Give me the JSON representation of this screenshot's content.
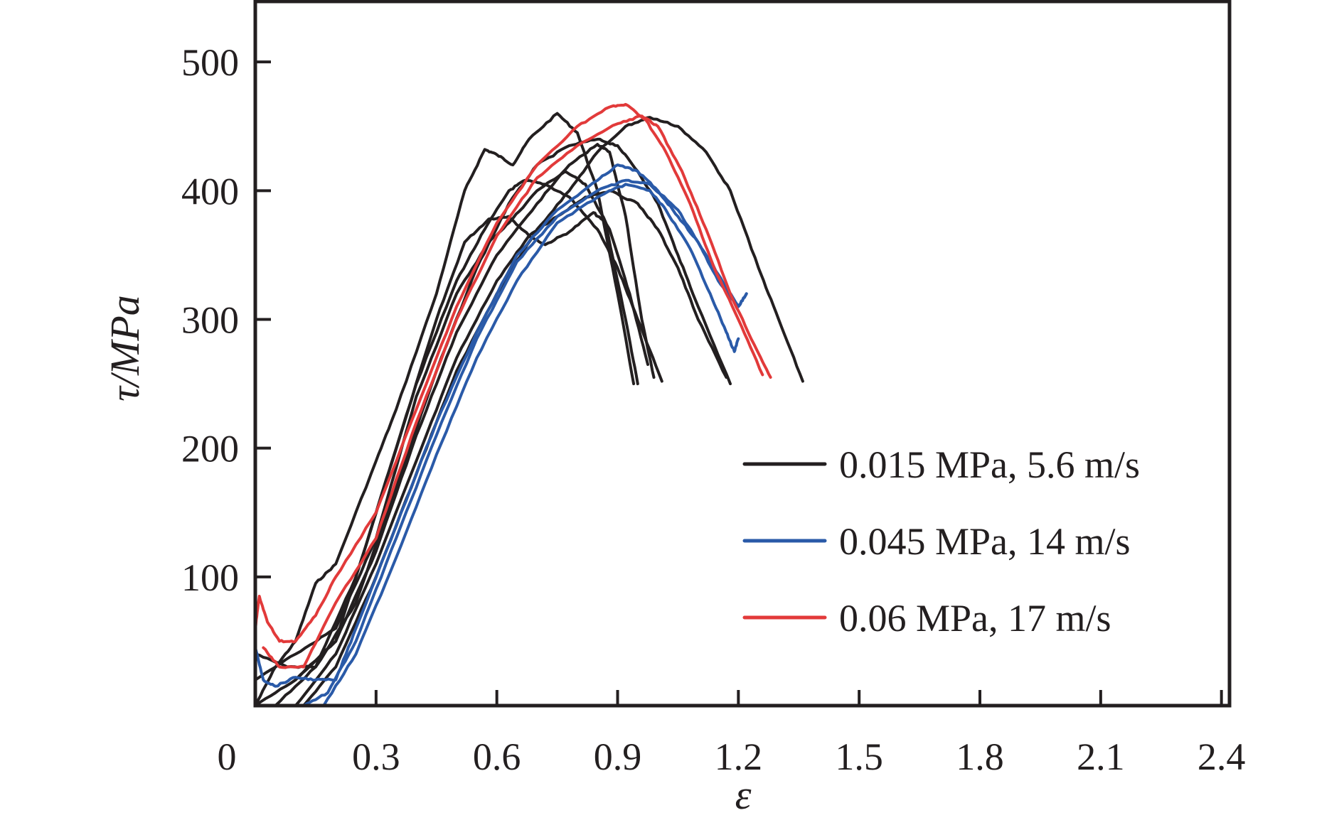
{
  "chart_data": {
    "type": "line",
    "title": "",
    "xlabel": "ε",
    "ylabel": "τ/MPa",
    "xlim": [
      0,
      2.42
    ],
    "ylim": [
      0,
      547
    ],
    "x_ticks": [
      0,
      0.3,
      0.6,
      0.9,
      1.2,
      1.5,
      1.8,
      2.1,
      2.4
    ],
    "x_tick_labels": [
      "0",
      "0.3",
      "0.6",
      "0.9",
      "1.2",
      "1.5",
      "1.8",
      "2.1",
      "2.4"
    ],
    "y_ticks": [
      100,
      200,
      300,
      400,
      500
    ],
    "y_tick_labels": [
      "100",
      "200",
      "300",
      "400",
      "500"
    ],
    "grid": false,
    "legend_position": "center-right",
    "legend": [
      {
        "label": "0.015 MPa, 5.6 m/s",
        "color": "#231f20"
      },
      {
        "label": "0.045 MPa, 14 m/s",
        "color": "#2a5aa8"
      },
      {
        "label": "0.06 MPa, 17 m/s",
        "color": "#e23a3a"
      }
    ],
    "series": [
      {
        "name": "0.015 MPa, 5.6 m/s #1",
        "group": 0,
        "points": [
          [
            0,
            0
          ],
          [
            0.05,
            30
          ],
          [
            0.1,
            50
          ],
          [
            0.15,
            95
          ],
          [
            0.2,
            110
          ],
          [
            0.3,
            190
          ],
          [
            0.35,
            230
          ],
          [
            0.45,
            320
          ],
          [
            0.52,
            400
          ],
          [
            0.57,
            432
          ],
          [
            0.6,
            428
          ],
          [
            0.64,
            420
          ],
          [
            0.68,
            440
          ],
          [
            0.75,
            460
          ],
          [
            0.8,
            445
          ],
          [
            0.85,
            400
          ],
          [
            0.9,
            320
          ],
          [
            0.94,
            250
          ]
        ]
      },
      {
        "name": "0.015 MPa, 5.6 m/s #2",
        "group": 0,
        "points": [
          [
            0,
            40
          ],
          [
            0.08,
            30
          ],
          [
            0.15,
            30
          ],
          [
            0.25,
            100
          ],
          [
            0.35,
            200
          ],
          [
            0.45,
            300
          ],
          [
            0.52,
            360
          ],
          [
            0.58,
            378
          ],
          [
            0.63,
            380
          ],
          [
            0.68,
            365
          ],
          [
            0.72,
            358
          ],
          [
            0.78,
            368
          ],
          [
            0.84,
            383
          ],
          [
            0.87,
            375
          ],
          [
            0.92,
            300
          ],
          [
            0.95,
            250
          ]
        ]
      },
      {
        "name": "0.015 MPa, 5.6 m/s #3",
        "group": 0,
        "points": [
          [
            0,
            20
          ],
          [
            0.1,
            40
          ],
          [
            0.2,
            60
          ],
          [
            0.3,
            130
          ],
          [
            0.4,
            240
          ],
          [
            0.5,
            320
          ],
          [
            0.58,
            360
          ],
          [
            0.63,
            375
          ],
          [
            0.7,
            400
          ],
          [
            0.77,
            415
          ],
          [
            0.82,
            405
          ],
          [
            0.88,
            370
          ],
          [
            0.93,
            320
          ],
          [
            0.975,
            265
          ]
        ]
      },
      {
        "name": "0.015 MPa, 5.6 m/s #4",
        "group": 0,
        "points": [
          [
            0,
            0
          ],
          [
            0.1,
            20
          ],
          [
            0.2,
            50
          ],
          [
            0.3,
            150
          ],
          [
            0.4,
            250
          ],
          [
            0.5,
            330
          ],
          [
            0.57,
            370
          ],
          [
            0.63,
            400
          ],
          [
            0.67,
            408
          ],
          [
            0.72,
            405
          ],
          [
            0.78,
            395
          ],
          [
            0.85,
            370
          ],
          [
            0.9,
            340
          ],
          [
            0.95,
            300
          ],
          [
            1.01,
            252
          ]
        ]
      },
      {
        "name": "0.015 MPa, 5.6 m/s #5",
        "group": 0,
        "points": [
          [
            0.05,
            0
          ],
          [
            0.15,
            30
          ],
          [
            0.25,
            80
          ],
          [
            0.35,
            170
          ],
          [
            0.45,
            260
          ],
          [
            0.55,
            340
          ],
          [
            0.63,
            390
          ],
          [
            0.7,
            420
          ],
          [
            0.78,
            435
          ],
          [
            0.85,
            440
          ],
          [
            0.9,
            435
          ],
          [
            0.95,
            415
          ],
          [
            1.0,
            390
          ],
          [
            1.05,
            350
          ],
          [
            1.1,
            310
          ],
          [
            1.18,
            250
          ]
        ]
      },
      {
        "name": "0.015 MPa, 5.6 m/s #6",
        "group": 0,
        "points": [
          [
            0.1,
            0
          ],
          [
            0.2,
            40
          ],
          [
            0.3,
            110
          ],
          [
            0.4,
            190
          ],
          [
            0.5,
            270
          ],
          [
            0.6,
            330
          ],
          [
            0.68,
            365
          ],
          [
            0.75,
            380
          ],
          [
            0.82,
            395
          ],
          [
            0.88,
            400
          ],
          [
            0.95,
            390
          ],
          [
            1.0,
            370
          ],
          [
            1.05,
            340
          ],
          [
            1.1,
            300
          ],
          [
            1.17,
            255
          ]
        ]
      },
      {
        "name": "0.015 MPa, 5.6 m/s #7",
        "group": 0,
        "points": [
          [
            0.12,
            0
          ],
          [
            0.2,
            30
          ],
          [
            0.3,
            100
          ],
          [
            0.4,
            180
          ],
          [
            0.5,
            260
          ],
          [
            0.6,
            320
          ],
          [
            0.7,
            370
          ],
          [
            0.78,
            400
          ],
          [
            0.85,
            430
          ],
          [
            0.92,
            450
          ],
          [
            0.98,
            457
          ],
          [
            1.05,
            450
          ],
          [
            1.12,
            430
          ],
          [
            1.18,
            400
          ],
          [
            1.25,
            340
          ],
          [
            1.3,
            300
          ],
          [
            1.36,
            252
          ]
        ]
      },
      {
        "name": "0.015 MPa, 5.6 m/s #8",
        "group": 0,
        "points": [
          [
            0.1,
            20
          ],
          [
            0.2,
            50
          ],
          [
            0.3,
            120
          ],
          [
            0.4,
            210
          ],
          [
            0.5,
            290
          ],
          [
            0.6,
            350
          ],
          [
            0.7,
            390
          ],
          [
            0.78,
            420
          ],
          [
            0.85,
            436
          ],
          [
            0.88,
            430
          ],
          [
            0.92,
            380
          ],
          [
            0.96,
            300
          ],
          [
            0.99,
            255
          ]
        ]
      },
      {
        "name": "0.045 MPa, 14 m/s #1",
        "group": 1,
        "points": [
          [
            0,
            45
          ],
          [
            0.02,
            20
          ],
          [
            0.05,
            15
          ],
          [
            0.1,
            22
          ],
          [
            0.15,
            20
          ],
          [
            0.2,
            20
          ],
          [
            0.25,
            60
          ],
          [
            0.35,
            140
          ],
          [
            0.45,
            220
          ],
          [
            0.55,
            290
          ],
          [
            0.65,
            350
          ],
          [
            0.75,
            385
          ],
          [
            0.85,
            408
          ],
          [
            0.9,
            420
          ],
          [
            0.95,
            415
          ],
          [
            1.0,
            400
          ],
          [
            1.05,
            380
          ],
          [
            1.1,
            360
          ],
          [
            1.15,
            330
          ],
          [
            1.2,
            310
          ],
          [
            1.22,
            320
          ]
        ]
      },
      {
        "name": "0.045 MPa, 14 m/s #2",
        "group": 1,
        "points": [
          [
            0.12,
            0
          ],
          [
            0.18,
            10
          ],
          [
            0.25,
            50
          ],
          [
            0.35,
            130
          ],
          [
            0.45,
            210
          ],
          [
            0.55,
            285
          ],
          [
            0.65,
            345
          ],
          [
            0.75,
            380
          ],
          [
            0.85,
            400
          ],
          [
            0.92,
            408
          ],
          [
            0.98,
            405
          ],
          [
            1.05,
            385
          ],
          [
            1.1,
            360
          ],
          [
            1.15,
            335
          ],
          [
            1.2,
            310
          ],
          [
            1.22,
            320
          ]
        ]
      },
      {
        "name": "0.045 MPa, 14 m/s #3",
        "group": 1,
        "points": [
          [
            0.17,
            0
          ],
          [
            0.25,
            40
          ],
          [
            0.35,
            115
          ],
          [
            0.45,
            195
          ],
          [
            0.55,
            270
          ],
          [
            0.65,
            330
          ],
          [
            0.75,
            375
          ],
          [
            0.85,
            395
          ],
          [
            0.92,
            405
          ],
          [
            0.98,
            400
          ],
          [
            1.02,
            385
          ],
          [
            1.08,
            355
          ],
          [
            1.13,
            320
          ],
          [
            1.17,
            290
          ],
          [
            1.19,
            275
          ],
          [
            1.2,
            285
          ]
        ]
      },
      {
        "name": "0.06 MPa, 17 m/s #1",
        "group": 2,
        "points": [
          [
            0,
            60
          ],
          [
            0.01,
            85
          ],
          [
            0.03,
            65
          ],
          [
            0.06,
            50
          ],
          [
            0.1,
            50
          ],
          [
            0.15,
            70
          ],
          [
            0.2,
            100
          ],
          [
            0.3,
            150
          ],
          [
            0.4,
            230
          ],
          [
            0.5,
            310
          ],
          [
            0.6,
            375
          ],
          [
            0.7,
            420
          ],
          [
            0.8,
            450
          ],
          [
            0.88,
            465
          ],
          [
            0.92,
            467
          ],
          [
            0.97,
            455
          ],
          [
            1.02,
            430
          ],
          [
            1.08,
            390
          ],
          [
            1.14,
            340
          ],
          [
            1.2,
            300
          ],
          [
            1.26,
            257
          ]
        ]
      },
      {
        "name": "0.06 MPa, 17 m/s #2",
        "group": 2,
        "points": [
          [
            0.02,
            45
          ],
          [
            0.06,
            30
          ],
          [
            0.12,
            30
          ],
          [
            0.2,
            80
          ],
          [
            0.3,
            130
          ],
          [
            0.4,
            220
          ],
          [
            0.5,
            300
          ],
          [
            0.6,
            365
          ],
          [
            0.7,
            410
          ],
          [
            0.8,
            435
          ],
          [
            0.9,
            452
          ],
          [
            0.96,
            458
          ],
          [
            1.0,
            450
          ],
          [
            1.06,
            415
          ],
          [
            1.12,
            370
          ],
          [
            1.18,
            320
          ],
          [
            1.24,
            280
          ],
          [
            1.28,
            255
          ]
        ]
      }
    ]
  }
}
